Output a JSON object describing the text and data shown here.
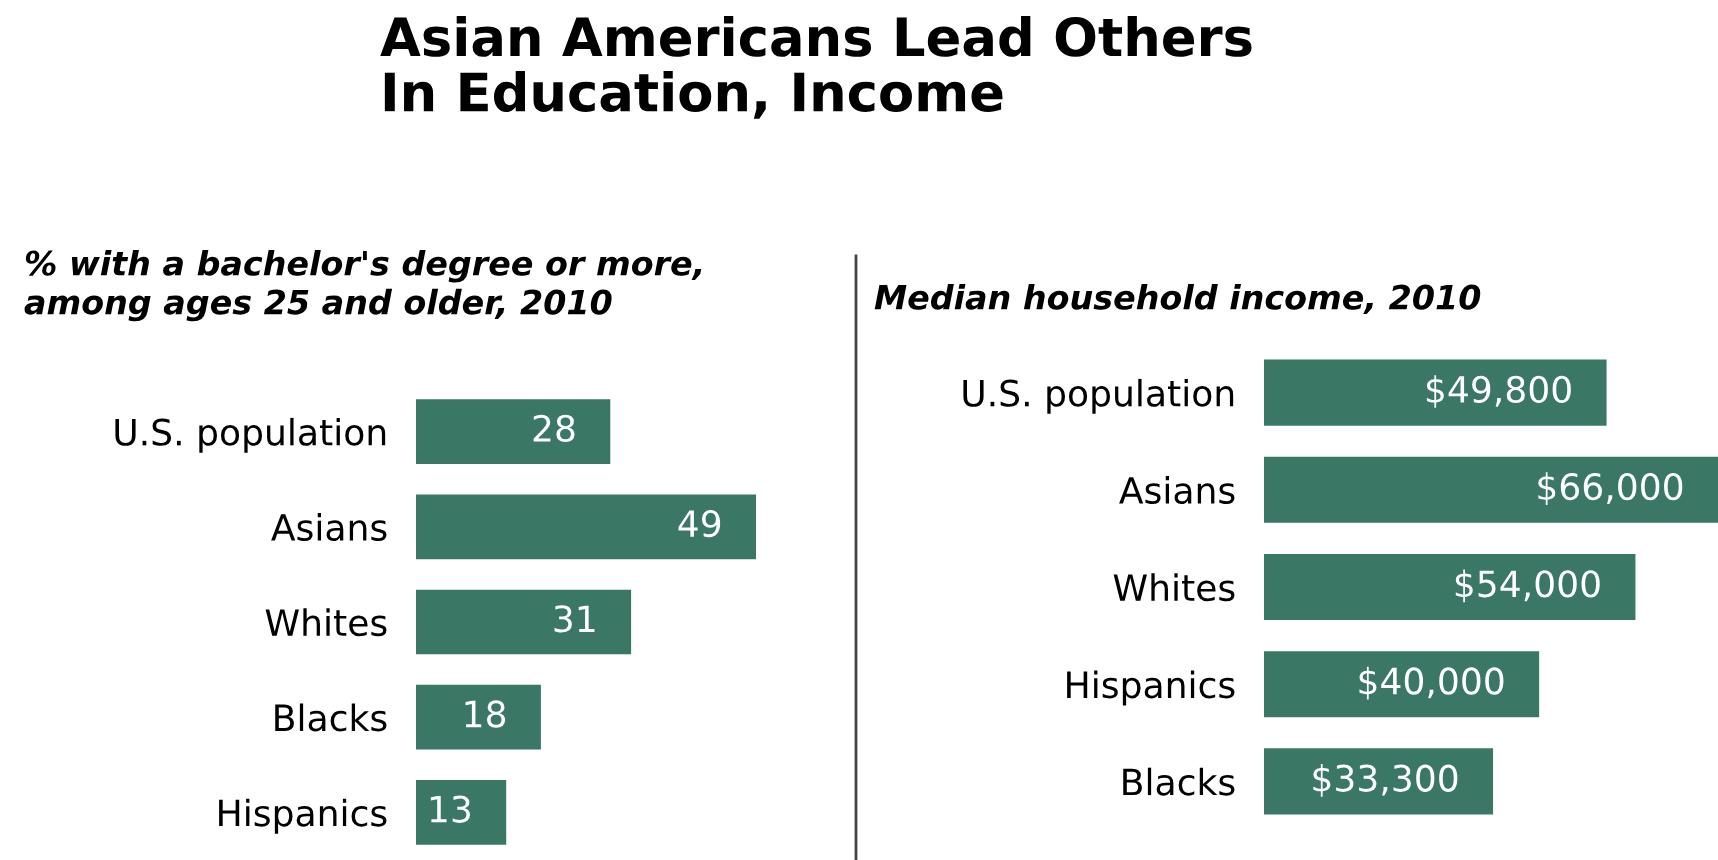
{
  "chart_data": [
    {
      "type": "bar",
      "orientation": "horizontal",
      "title": "Asian Americans Lead Others\nIn Education, Income",
      "subtitle": "% with a bachelor's degree or more,\namong ages 25 and older, 2010",
      "categories": [
        "U.S. population",
        "Asians",
        "Whites",
        "Blacks",
        "Hispanics"
      ],
      "values": [
        28,
        49,
        31,
        18,
        13
      ],
      "color": "#3a7865",
      "data_labels": true,
      "tick_labels": "y",
      "grid": false
    },
    {
      "type": "bar",
      "orientation": "horizontal",
      "subtitle": "Median household income, 2010",
      "categories": [
        "U.S. population",
        "Asians",
        "Whites",
        "Hispanics",
        "Blacks"
      ],
      "values": [
        49800,
        66000,
        54000,
        40000,
        33300
      ],
      "value_labels": [
        "$49,800",
        "$66,000",
        "$54,000",
        "$40,000",
        "$33,300"
      ],
      "color": "#3a7865",
      "tick_labels": "y",
      "grid": false
    }
  ]
}
